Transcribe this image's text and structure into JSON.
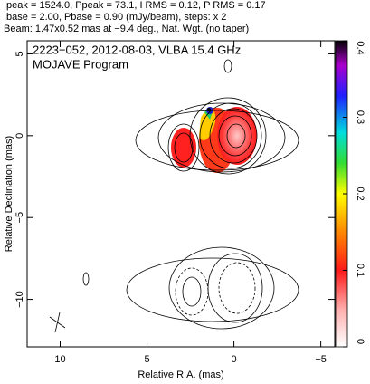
{
  "chart_data": {
    "type": "image",
    "header": [
      "Ipeak = 1524.0, Ppeak = 73.1, I RMS = 0.12, P RMS = 0.17",
      "Ibase = 2.00, Pbase = 0.90 (mJy/beam), steps: x 2",
      "Beam: 1.47x0.52 mas at −9.4 deg., Nat. Wgt. (no taper)"
    ],
    "annotations": [
      "2223−052, 2012-08-03, VLBA 15.4 GHz",
      "MOJAVE Program"
    ],
    "x_label": "Relative R.A. (mas)",
    "y_label": "Relative Declination (mas)",
    "xlim": [
      11.9,
      -5.8
    ],
    "ylim": [
      -12.9,
      5.8
    ],
    "xticks": [
      10,
      5,
      0,
      {
        "value": -5,
        "label": "−5"
      }
    ],
    "yticks": [
      5,
      0,
      {
        "value": -5,
        "label": "−5"
      },
      {
        "value": -10,
        "label": "−10"
      }
    ],
    "colorbar": {
      "lim": [
        0,
        0.4
      ],
      "ticks": [
        0,
        0.1,
        0.2,
        0.3,
        0.4
      ]
    }
  }
}
